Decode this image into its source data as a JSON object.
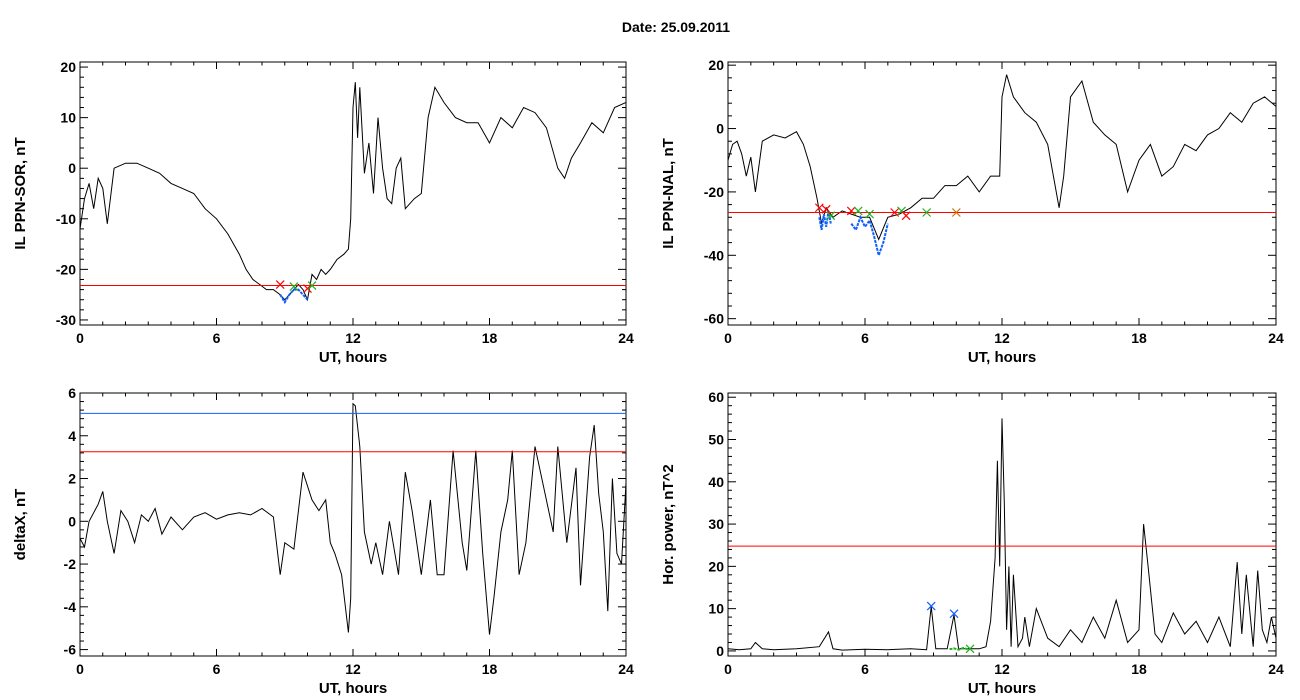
{
  "figure": {
    "title": "Date:  25.09.2011"
  },
  "chart_data": [
    {
      "type": "line",
      "xlabel": "UT, hours",
      "ylabel": "IL PPN-SOR, nT",
      "xlim": [
        0,
        24
      ],
      "ylim": [
        -31,
        21
      ],
      "xticks": [
        0,
        6,
        12,
        18,
        24
      ],
      "yticks": [
        -30,
        -20,
        -10,
        0,
        10,
        20
      ],
      "grid": false,
      "series": [
        {
          "color": "#000000",
          "x": [
            0,
            0.2,
            0.4,
            0.6,
            0.8,
            1.0,
            1.2,
            1.5,
            2.0,
            2.5,
            3.0,
            3.5,
            4.0,
            4.5,
            5.0,
            5.5,
            6.0,
            6.5,
            7.0,
            7.3,
            7.6,
            7.9,
            8.2,
            8.5,
            8.8,
            9.0,
            9.2,
            9.4,
            9.6,
            9.8,
            10.0,
            10.2,
            10.4,
            10.6,
            10.8,
            11.0,
            11.3,
            11.6,
            11.8,
            11.9,
            12.0,
            12.1,
            12.2,
            12.3,
            12.5,
            12.7,
            12.9,
            13.1,
            13.3,
            13.5,
            13.7,
            13.9,
            14.1,
            14.3,
            14.5,
            14.7,
            15.0,
            15.3,
            15.6,
            16.0,
            16.5,
            17.0,
            17.5,
            18.0,
            18.5,
            19.0,
            19.5,
            20.0,
            20.5,
            21.0,
            21.3,
            21.6,
            22.0,
            22.5,
            23.0,
            23.5,
            24.0
          ],
          "y": [
            -12,
            -6,
            -3,
            -8,
            -2,
            -4,
            -11,
            0,
            1,
            1,
            0,
            -1,
            -3,
            -4,
            -5,
            -8,
            -10,
            -13,
            -17,
            -20,
            -22,
            -23,
            -24,
            -24,
            -25,
            -26,
            -25,
            -24,
            -23,
            -24,
            -26,
            -21,
            -22,
            -20,
            -21,
            -20,
            -18,
            -17,
            -16,
            -10,
            12,
            17,
            6,
            16,
            -1,
            5,
            -5,
            10,
            0,
            -6,
            -7,
            0,
            2,
            -8,
            -7,
            -6,
            -5,
            10,
            16,
            13,
            10,
            9,
            9,
            5,
            10,
            8,
            12,
            11,
            8,
            0,
            -2,
            2,
            5,
            9,
            7,
            12,
            13
          ]
        }
      ],
      "threshold_lines": [
        {
          "y": -23.2,
          "color": "#ff0000"
        }
      ],
      "highlight_segments": [
        {
          "x": [
            8.8,
            9.0,
            9.2,
            9.4,
            9.6,
            9.8,
            10.0
          ],
          "y": [
            -25,
            -26.5,
            -25,
            -24,
            -24,
            -25,
            -26
          ],
          "color": "#1060ff"
        }
      ],
      "markers": [
        {
          "x": 8.8,
          "y": -23,
          "symbol": "x",
          "color": "#ff0000"
        },
        {
          "x": 9.4,
          "y": -23.4,
          "symbol": "x",
          "color": "#20b020"
        },
        {
          "x": 10.0,
          "y": -23.8,
          "symbol": "x",
          "color": "#ff0000"
        },
        {
          "x": 10.2,
          "y": -23.2,
          "symbol": "x",
          "color": "#20b020"
        }
      ]
    },
    {
      "type": "line",
      "xlabel": "UT, hours",
      "ylabel": "IL PPN-NAL, nT",
      "xlim": [
        0,
        24
      ],
      "ylim": [
        -62,
        21
      ],
      "xticks": [
        0,
        6,
        12,
        18,
        24
      ],
      "yticks": [
        -60,
        -40,
        -20,
        0,
        20
      ],
      "grid": false,
      "series": [
        {
          "color": "#000000",
          "x": [
            0,
            0.2,
            0.4,
            0.6,
            0.8,
            1.0,
            1.2,
            1.5,
            2.0,
            2.5,
            3.0,
            3.3,
            3.6,
            3.9,
            4.1,
            4.3,
            4.6,
            5.0,
            5.4,
            5.8,
            6.2,
            6.6,
            7.0,
            7.5,
            8.0,
            8.5,
            9.0,
            9.5,
            10.0,
            10.5,
            11.0,
            11.5,
            11.9,
            12.0,
            12.2,
            12.5,
            13.0,
            13.5,
            14.0,
            14.5,
            14.7,
            15.0,
            15.5,
            16.0,
            16.5,
            17.0,
            17.5,
            18.0,
            18.5,
            19.0,
            19.5,
            20.0,
            20.5,
            21.0,
            21.5,
            22.0,
            22.5,
            23.0,
            23.5,
            24.0
          ],
          "y": [
            -10,
            -5,
            -4,
            -8,
            -15,
            -9,
            -20,
            -4,
            -2,
            -3,
            -1,
            -5,
            -12,
            -22,
            -30,
            -25,
            -28,
            -26,
            -27,
            -28,
            -28,
            -35,
            -28,
            -27,
            -25,
            -22,
            -22,
            -18,
            -18,
            -15,
            -20,
            -15,
            -15,
            10,
            17,
            10,
            5,
            2,
            -5,
            -25,
            -15,
            10,
            15,
            2,
            -2,
            -5,
            -20,
            -10,
            -5,
            -15,
            -12,
            -5,
            -7,
            -2,
            0,
            5,
            2,
            8,
            10,
            7
          ]
        }
      ],
      "threshold_lines": [
        {
          "y": -26.5,
          "color": "#ff0000"
        }
      ],
      "highlight_segments": [
        {
          "x": [
            4.0,
            4.1,
            4.2,
            4.3,
            4.4,
            4.5
          ],
          "y": [
            -28,
            -32,
            -27,
            -31,
            -26,
            -30
          ],
          "color": "#1060ff"
        },
        {
          "x": [
            5.4,
            5.6,
            5.8,
            6.0,
            6.2,
            6.4,
            6.6,
            6.8,
            7.0
          ],
          "y": [
            -30,
            -32,
            -28,
            -31,
            -29,
            -34,
            -40,
            -36,
            -30
          ],
          "color": "#1060ff"
        }
      ],
      "markers": [
        {
          "x": 4.0,
          "y": -25,
          "symbol": "x",
          "color": "#ff0000"
        },
        {
          "x": 4.3,
          "y": -25.5,
          "symbol": "x",
          "color": "#ff0000"
        },
        {
          "x": 4.5,
          "y": -27.5,
          "symbol": "x",
          "color": "#20b020"
        },
        {
          "x": 5.4,
          "y": -26,
          "symbol": "x",
          "color": "#ff0000"
        },
        {
          "x": 5.7,
          "y": -26,
          "symbol": "x",
          "color": "#20b020"
        },
        {
          "x": 6.2,
          "y": -27,
          "symbol": "x",
          "color": "#20b020"
        },
        {
          "x": 7.3,
          "y": -26.5,
          "symbol": "x",
          "color": "#ff0000"
        },
        {
          "x": 7.6,
          "y": -26,
          "symbol": "x",
          "color": "#20b020"
        },
        {
          "x": 7.8,
          "y": -27.5,
          "symbol": "x",
          "color": "#ff0000"
        },
        {
          "x": 8.7,
          "y": -26.5,
          "symbol": "x",
          "color": "#20b020"
        },
        {
          "x": 10.0,
          "y": -26.5,
          "symbol": "x",
          "color": "#d07000"
        }
      ]
    },
    {
      "type": "line",
      "xlabel": "UT, hours",
      "ylabel": "deltaX, nT",
      "xlim": [
        0,
        24
      ],
      "ylim": [
        -6.3,
        6
      ],
      "xticks": [
        0,
        6,
        12,
        18,
        24
      ],
      "yticks": [
        -6,
        -4,
        -2,
        0,
        2,
        4,
        6
      ],
      "grid": false,
      "series": [
        {
          "color": "#000000",
          "x": [
            0,
            0.2,
            0.4,
            0.6,
            0.8,
            1.0,
            1.2,
            1.5,
            1.8,
            2.1,
            2.4,
            2.7,
            3.0,
            3.3,
            3.6,
            4.0,
            4.5,
            5.0,
            5.5,
            6.0,
            6.5,
            7.0,
            7.5,
            8.0,
            8.5,
            8.8,
            9.0,
            9.4,
            9.8,
            10.2,
            10.5,
            10.8,
            11.0,
            11.2,
            11.5,
            11.8,
            11.9,
            12.0,
            12.1,
            12.3,
            12.5,
            12.8,
            13.0,
            13.3,
            13.6,
            14.0,
            14.3,
            14.6,
            15.0,
            15.4,
            15.7,
            16.0,
            16.4,
            16.8,
            17.0,
            17.4,
            17.7,
            18.0,
            18.2,
            18.5,
            18.8,
            19.0,
            19.3,
            19.6,
            20.0,
            20.4,
            20.8,
            21.0,
            21.4,
            21.8,
            22.0,
            22.4,
            22.6,
            22.8,
            23.0,
            23.2,
            23.4,
            23.6,
            23.8,
            24.0
          ],
          "y": [
            -0.8,
            -1.2,
            0,
            0.4,
            0.8,
            1.4,
            0,
            -1.5,
            0.5,
            0,
            -1,
            0.3,
            0,
            0.6,
            -0.6,
            0.2,
            -0.4,
            0.2,
            0.4,
            0.1,
            0.3,
            0.4,
            0.3,
            0.6,
            0.2,
            -2.5,
            -1,
            -1.3,
            2.3,
            1,
            0.5,
            1,
            -1,
            -1.5,
            -2.5,
            -5.2,
            -3.6,
            5.5,
            5.4,
            3.5,
            -0.5,
            -2,
            -1,
            -2.5,
            0,
            -2.5,
            2.3,
            0.5,
            -2.5,
            1,
            -2.5,
            -2.5,
            3.3,
            -1,
            -2.3,
            3.3,
            -1.5,
            -5.3,
            -3.5,
            -0.5,
            1,
            3.3,
            -2.5,
            -1,
            3.5,
            1.5,
            -0.5,
            3.5,
            -1,
            2.5,
            -3,
            3,
            4.5,
            1.3,
            -0.5,
            -4.2,
            2,
            -1.5,
            -2,
            1.8
          ]
        }
      ],
      "threshold_lines": [
        {
          "y": 5.05,
          "color": "#1060ff"
        },
        {
          "y": 3.25,
          "color": "#ff0000"
        }
      ],
      "highlight_segments": [],
      "markers": []
    },
    {
      "type": "line",
      "xlabel": "UT, hours",
      "ylabel": "Hor. power, nT^2",
      "xlim": [
        0,
        24
      ],
      "ylim": [
        -1.2,
        61
      ],
      "xticks": [
        0,
        6,
        12,
        18,
        24
      ],
      "yticks": [
        0,
        10,
        20,
        30,
        40,
        50,
        60
      ],
      "grid": false,
      "series": [
        {
          "color": "#000000",
          "x": [
            0,
            0.5,
            1.0,
            1.2,
            1.5,
            2.0,
            3.0,
            4.0,
            4.4,
            4.6,
            5.0,
            6.0,
            7.0,
            8.0,
            8.7,
            8.9,
            9.1,
            9.6,
            9.9,
            10.1,
            10.6,
            11.0,
            11.3,
            11.5,
            11.7,
            11.8,
            11.9,
            12.0,
            12.1,
            12.2,
            12.3,
            12.4,
            12.5,
            12.7,
            12.9,
            13.0,
            13.2,
            13.5,
            14.0,
            14.5,
            15.0,
            15.5,
            16.0,
            16.5,
            17.0,
            17.5,
            18.0,
            18.2,
            18.4,
            18.7,
            19.0,
            19.5,
            20.0,
            20.5,
            21.0,
            21.5,
            22.0,
            22.3,
            22.5,
            22.7,
            23.0,
            23.2,
            23.4,
            23.6,
            23.8,
            24.0
          ],
          "y": [
            0.5,
            0.3,
            0.5,
            2,
            0.5,
            0.3,
            0.5,
            1,
            4.5,
            0.5,
            0.2,
            0.4,
            0.3,
            0.5,
            0.3,
            10.5,
            0.5,
            0.5,
            8.5,
            0.5,
            0.5,
            0.5,
            1,
            7,
            22,
            45,
            20,
            55,
            35,
            5,
            20,
            1,
            18,
            1,
            3,
            8,
            1,
            10,
            3,
            1,
            5,
            2,
            8,
            3,
            12,
            2,
            5,
            30,
            20,
            4,
            2,
            9,
            4,
            7,
            2,
            8,
            1,
            21,
            4,
            18,
            1,
            19,
            5,
            2,
            8,
            3
          ]
        }
      ],
      "threshold_lines": [
        {
          "y": 24.8,
          "color": "#ff0000"
        }
      ],
      "highlight_segments": [
        {
          "x": [
            9.7,
            9.9,
            10.1,
            10.3,
            10.5
          ],
          "y": [
            0.4,
            0.6,
            0.3,
            0.7,
            0.4
          ],
          "color": "#20b020"
        }
      ],
      "markers": [
        {
          "x": 8.9,
          "y": 10.6,
          "symbol": "x",
          "color": "#1060ff"
        },
        {
          "x": 9.9,
          "y": 8.8,
          "symbol": "x",
          "color": "#1060ff"
        },
        {
          "x": 10.6,
          "y": 0.5,
          "symbol": "x",
          "color": "#20b020"
        }
      ]
    }
  ]
}
